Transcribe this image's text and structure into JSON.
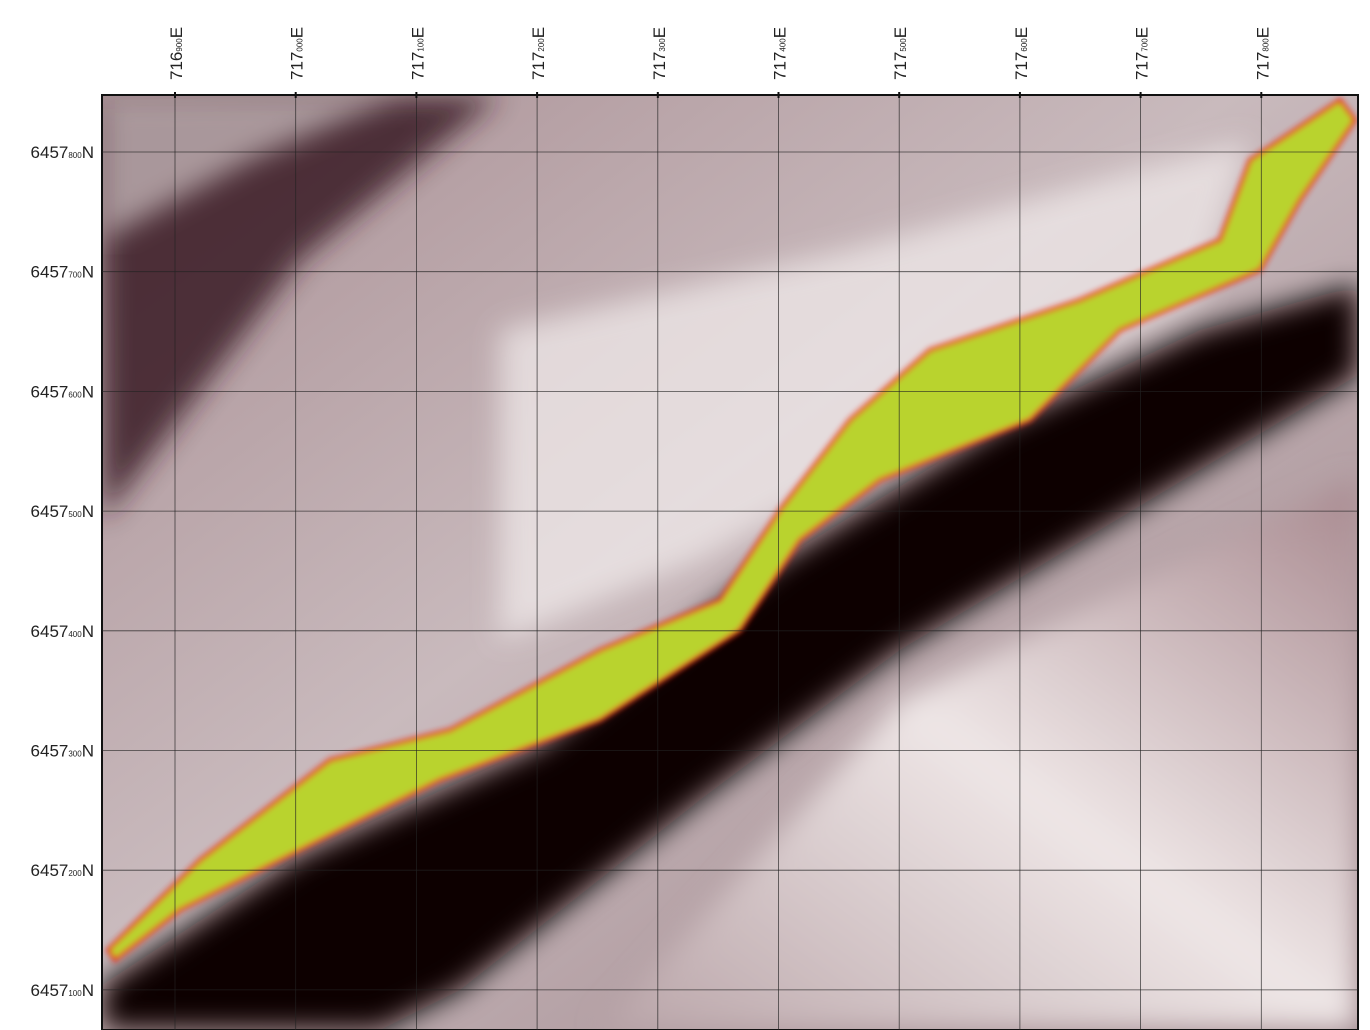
{
  "eastings": [
    {
      "main": "716",
      "sup": "900",
      "suffix": "E"
    },
    {
      "main": "717",
      "sup": "000",
      "suffix": "E"
    },
    {
      "main": "717",
      "sup": "100",
      "suffix": "E"
    },
    {
      "main": "717",
      "sup": "200",
      "suffix": "E"
    },
    {
      "main": "717",
      "sup": "300",
      "suffix": "E"
    },
    {
      "main": "717",
      "sup": "400",
      "suffix": "E"
    },
    {
      "main": "717",
      "sup": "500",
      "suffix": "E"
    },
    {
      "main": "717",
      "sup": "600",
      "suffix": "E"
    },
    {
      "main": "717",
      "sup": "700",
      "suffix": "E"
    },
    {
      "main": "717",
      "sup": "800",
      "suffix": "E"
    }
  ],
  "northings": [
    {
      "main": "6457",
      "sup": "800",
      "suffix": "N"
    },
    {
      "main": "6457",
      "sup": "700",
      "suffix": "N"
    },
    {
      "main": "6457",
      "sup": "600",
      "suffix": "N"
    },
    {
      "main": "6457",
      "sup": "500",
      "suffix": "N"
    },
    {
      "main": "6457",
      "sup": "400",
      "suffix": "N"
    },
    {
      "main": "6457",
      "sup": "300",
      "suffix": "N"
    },
    {
      "main": "6457",
      "sup": "200",
      "suffix": "N"
    },
    {
      "main": "6457",
      "sup": "100",
      "suffix": "N"
    }
  ]
}
